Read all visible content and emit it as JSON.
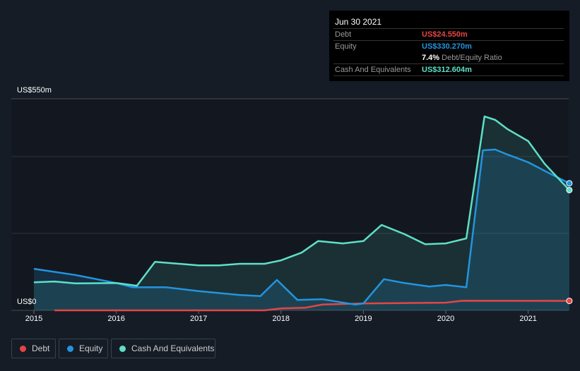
{
  "tooltip": {
    "date": "Jun 30 2021",
    "debt_label": "Debt",
    "debt_value": "US$24.550m",
    "equity_label": "Equity",
    "equity_value": "US$330.270m",
    "ratio_value": "7.4%",
    "ratio_label": "Debt/Equity Ratio",
    "cash_label": "Cash And Equivalents",
    "cash_value": "US$312.604m"
  },
  "legend": [
    "Debt",
    "Equity",
    "Cash And Equivalents"
  ],
  "colors": {
    "debt": "#e64545",
    "equity": "#2394df",
    "cash": "#5ee0c8"
  },
  "chart_data": {
    "type": "line",
    "ylabel_top": "US$550m",
    "ylabel_bottom": "US$0",
    "ylim": [
      0,
      550
    ],
    "xlim": [
      2014.85,
      2021.5
    ],
    "x_ticks": [
      "2015",
      "2016",
      "2017",
      "2018",
      "2019",
      "2020",
      "2021"
    ],
    "series": [
      {
        "name": "Debt",
        "points": [
          [
            2015.25,
            0
          ],
          [
            2017.8,
            0
          ],
          [
            2018,
            5
          ],
          [
            2018.3,
            7
          ],
          [
            2018.5,
            15
          ],
          [
            2019,
            18
          ],
          [
            2020,
            20
          ],
          [
            2020.2,
            25
          ],
          [
            2021.5,
            24.55
          ]
        ]
      },
      {
        "name": "Equity",
        "points": [
          [
            2015,
            108
          ],
          [
            2015.5,
            92
          ],
          [
            2016,
            71
          ],
          [
            2016.2,
            60
          ],
          [
            2016.6,
            60
          ],
          [
            2017,
            50
          ],
          [
            2017.5,
            40
          ],
          [
            2017.75,
            37
          ],
          [
            2017.95,
            79
          ],
          [
            2018.2,
            27
          ],
          [
            2018.5,
            29
          ],
          [
            2018.9,
            15
          ],
          [
            2019,
            18
          ],
          [
            2019.25,
            81
          ],
          [
            2019.5,
            71
          ],
          [
            2019.8,
            62
          ],
          [
            2020,
            66
          ],
          [
            2020.25,
            60
          ],
          [
            2020.45,
            416
          ],
          [
            2020.6,
            418
          ],
          [
            2020.75,
            405
          ],
          [
            2021,
            385
          ],
          [
            2021.25,
            357
          ],
          [
            2021.5,
            330.27
          ]
        ]
      },
      {
        "name": "Cash And Equivalents",
        "points": [
          [
            2015,
            73
          ],
          [
            2015.25,
            75
          ],
          [
            2015.5,
            70
          ],
          [
            2016,
            71
          ],
          [
            2016.25,
            64
          ],
          [
            2016.47,
            126
          ],
          [
            2017,
            117
          ],
          [
            2017.25,
            117
          ],
          [
            2017.5,
            121
          ],
          [
            2017.8,
            121
          ],
          [
            2018,
            130
          ],
          [
            2018.25,
            150
          ],
          [
            2018.45,
            180
          ],
          [
            2018.75,
            174
          ],
          [
            2019,
            180
          ],
          [
            2019.22,
            222
          ],
          [
            2019.5,
            198
          ],
          [
            2019.75,
            172
          ],
          [
            2020,
            174
          ],
          [
            2020.25,
            187
          ],
          [
            2020.47,
            504
          ],
          [
            2020.6,
            495
          ],
          [
            2020.75,
            471
          ],
          [
            2021,
            440
          ],
          [
            2021.2,
            381
          ],
          [
            2021.5,
            312.604
          ]
        ]
      }
    ]
  }
}
